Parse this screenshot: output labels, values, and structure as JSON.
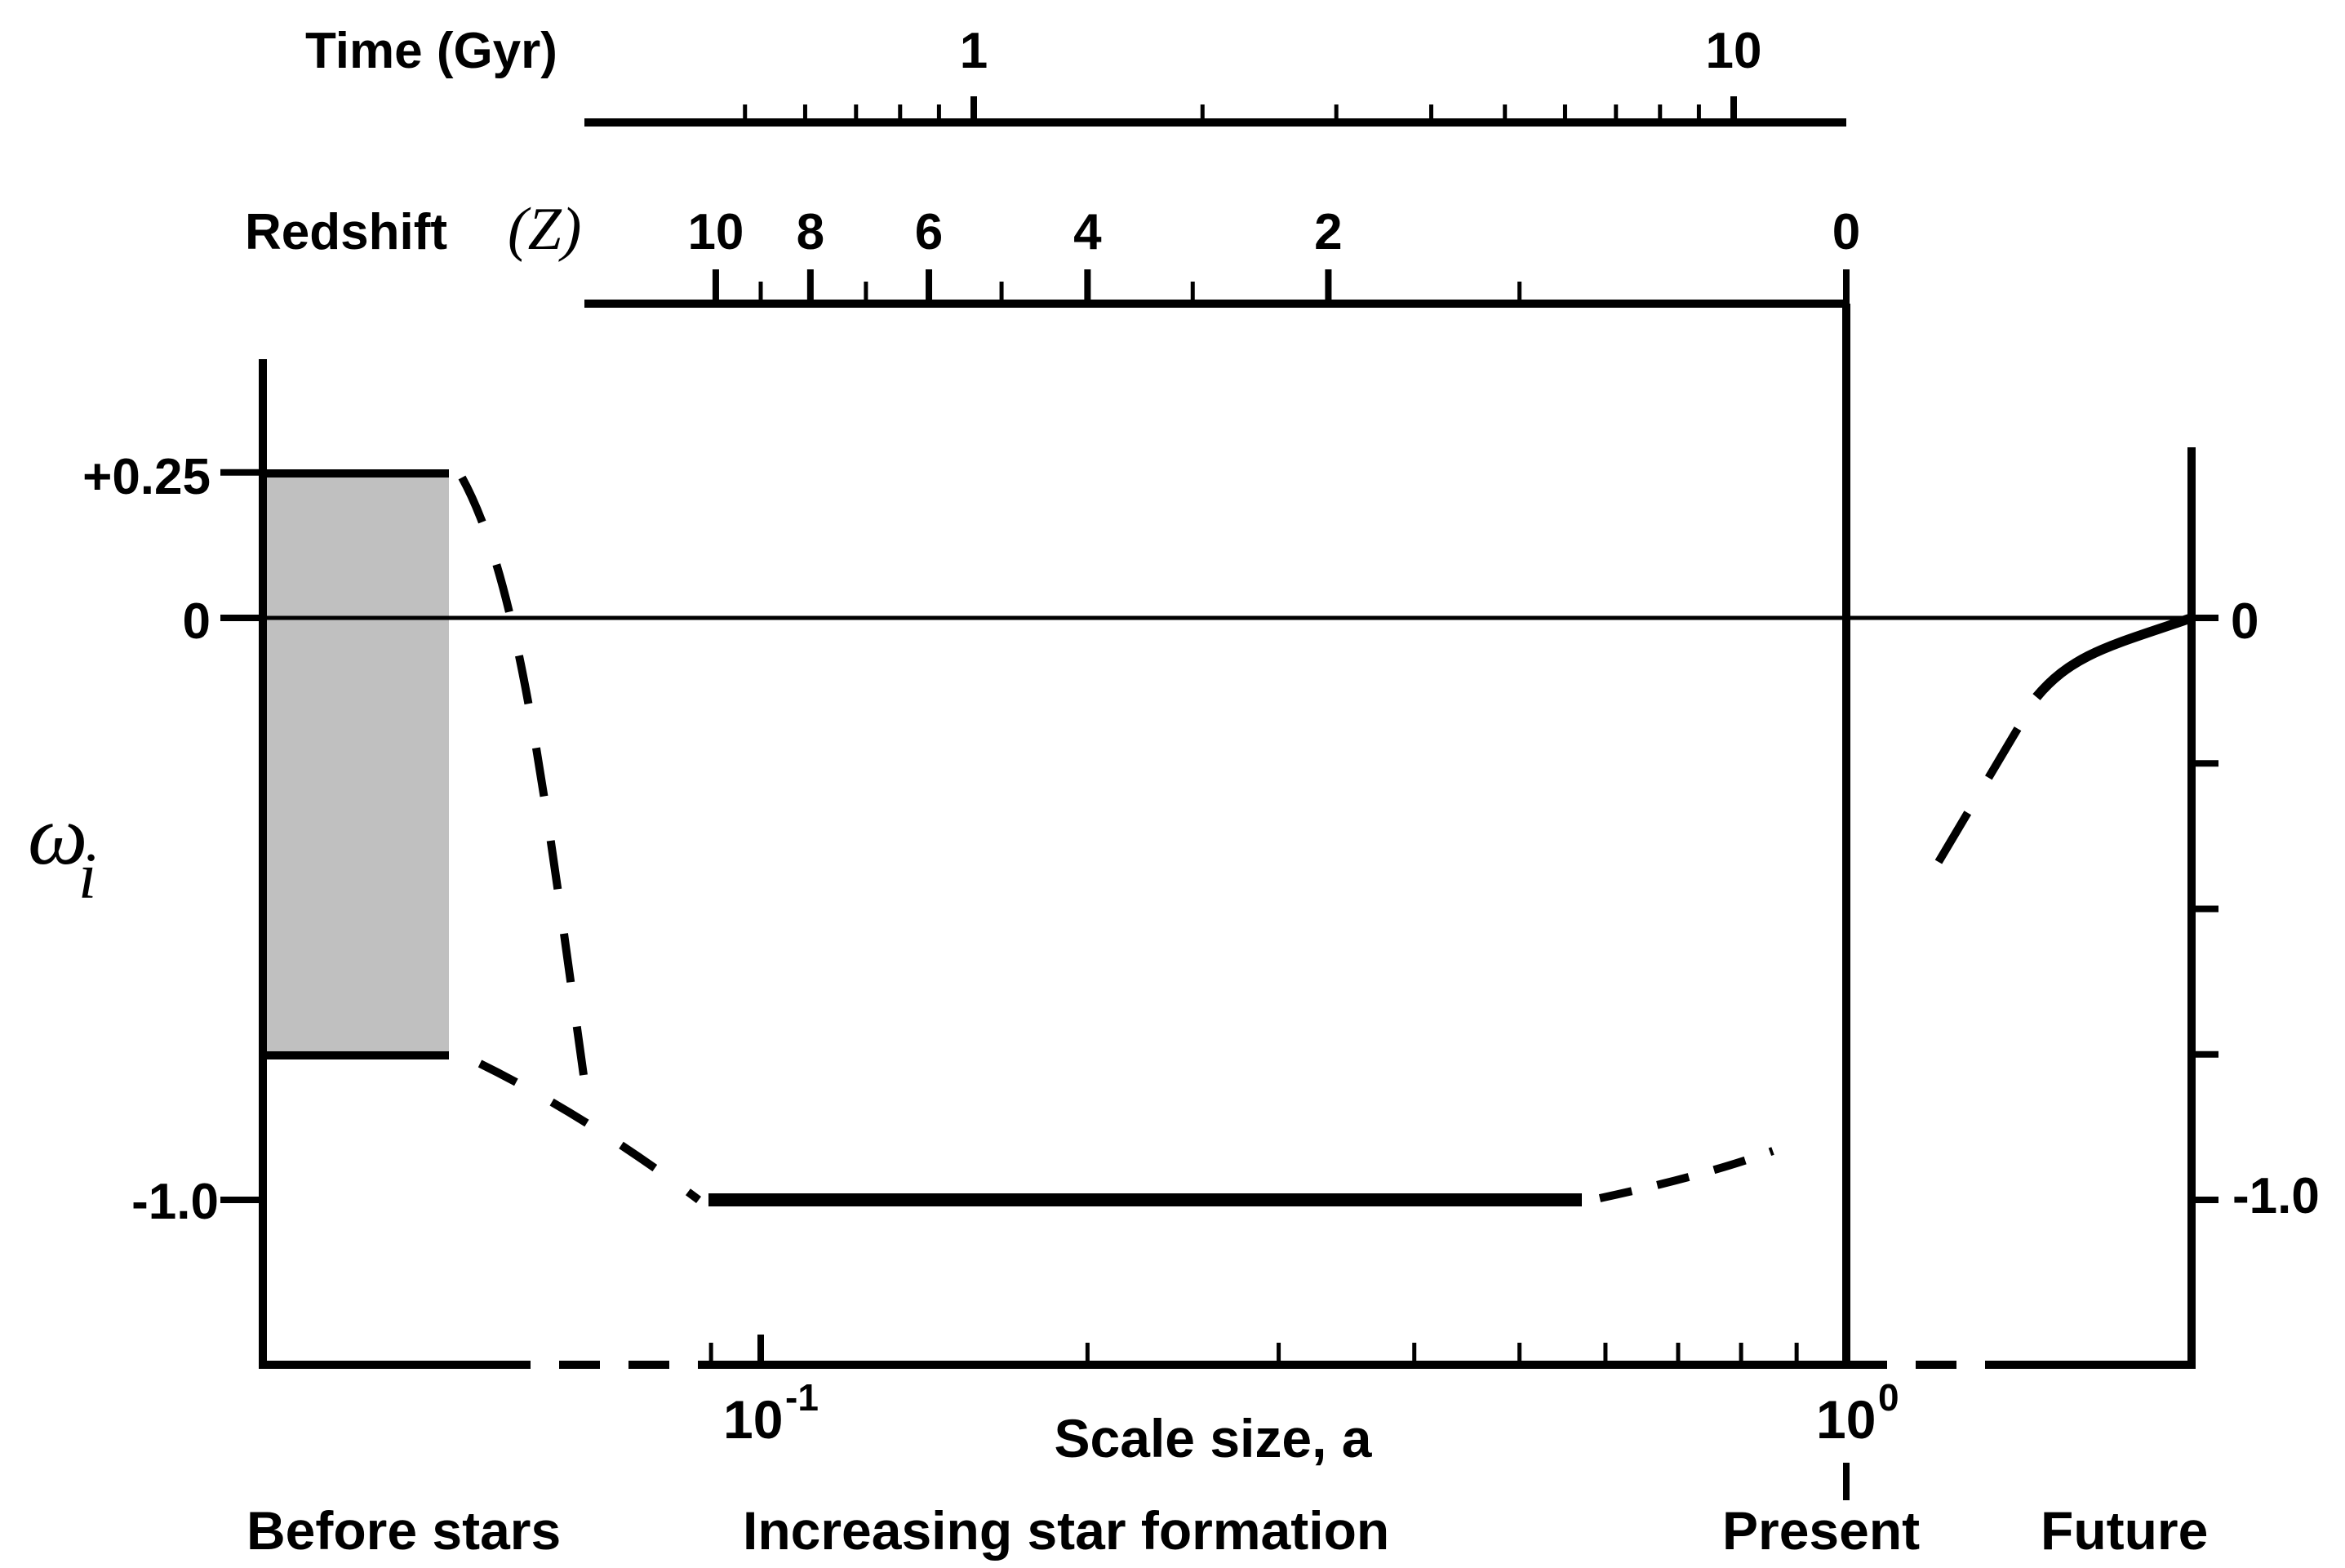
{
  "time_axis": {
    "label": "Time (Gyr)",
    "ticks": [
      {
        "value": 0.5,
        "label": ""
      },
      {
        "value": 0.6,
        "label": ""
      },
      {
        "value": 0.7,
        "label": ""
      },
      {
        "value": 0.8,
        "label": ""
      },
      {
        "value": 0.9,
        "label": ""
      },
      {
        "value": 1,
        "label": "1"
      },
      {
        "value": 2,
        "label": ""
      },
      {
        "value": 3,
        "label": ""
      },
      {
        "value": 4,
        "label": ""
      },
      {
        "value": 5,
        "label": ""
      },
      {
        "value": 6,
        "label": ""
      },
      {
        "value": 7,
        "label": ""
      },
      {
        "value": 8,
        "label": ""
      },
      {
        "value": 9,
        "label": ""
      },
      {
        "value": 10,
        "label": "10"
      }
    ]
  },
  "redshift_axis": {
    "label_text": "Redshift",
    "symbol": "(Z)",
    "ticks": [
      {
        "value": 10,
        "label": "10"
      },
      {
        "value": 9,
        "label": ""
      },
      {
        "value": 8,
        "label": "8"
      },
      {
        "value": 7,
        "label": ""
      },
      {
        "value": 6,
        "label": "6"
      },
      {
        "value": 5,
        "label": ""
      },
      {
        "value": 4,
        "label": "4"
      },
      {
        "value": 3,
        "label": ""
      },
      {
        "value": 2,
        "label": "2"
      },
      {
        "value": 1,
        "label": ""
      },
      {
        "value": 0,
        "label": "0"
      }
    ]
  },
  "y_axis": {
    "symbol": "ω",
    "subscript": "i",
    "left_tick_labels": [
      {
        "value": 0.25,
        "label": "+0.25"
      },
      {
        "value": 0,
        "label": "0"
      },
      {
        "value": -1.0,
        "label": "-1.0"
      }
    ],
    "right_tick_labels": [
      {
        "value": 0,
        "label": "0"
      },
      {
        "value": -1.0,
        "label": "-1.0"
      }
    ],
    "minor_ticks": [
      -0.25,
      -0.5,
      -0.75
    ]
  },
  "x_axis": {
    "label": "Scale size, a",
    "tick_label_1_base": "10",
    "tick_label_1_exp": "-1",
    "tick_label_2_base": "10",
    "tick_label_2_exp": "0",
    "ticks": [
      0.09,
      0.1,
      0.2,
      0.3,
      0.4,
      0.5,
      0.6,
      0.7,
      0.8,
      0.9,
      1.0
    ]
  },
  "regions": {
    "before_stars": "Before stars",
    "star_formation": "Increasing star formation",
    "present": "Present",
    "future": "Future"
  },
  "shaded_band": {
    "upper": 0.25,
    "lower": -0.75,
    "color": "#c0c0c0"
  }
}
